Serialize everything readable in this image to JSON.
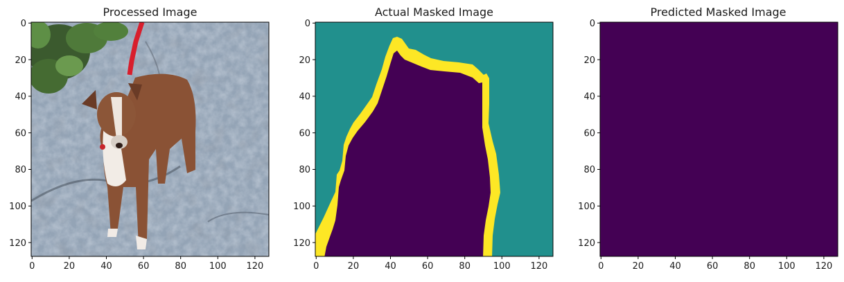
{
  "panels": [
    {
      "title": "Processed Image",
      "kind": "photo",
      "x_ticks": [
        "0",
        "20",
        "40",
        "60",
        "80",
        "100",
        "120"
      ],
      "y_ticks": [
        "0",
        "20",
        "40",
        "60",
        "80",
        "100",
        "120"
      ]
    },
    {
      "title": "Actual Masked Image",
      "kind": "trimap",
      "x_ticks": [
        "0",
        "20",
        "40",
        "60",
        "80",
        "100",
        "120"
      ],
      "y_ticks": [
        "0",
        "20",
        "40",
        "60",
        "80",
        "100",
        "120"
      ]
    },
    {
      "title": "Predicted Masked Image",
      "kind": "uniform",
      "x_ticks": [
        "0",
        "20",
        "40",
        "60",
        "80",
        "100",
        "120"
      ],
      "y_ticks": [
        "0",
        "20",
        "40",
        "60",
        "80",
        "100",
        "120"
      ]
    }
  ],
  "colors": {
    "mask_background": "#21908d",
    "mask_foreground": "#440154",
    "mask_boundary": "#fde725",
    "predicted_fill": "#440154"
  }
}
